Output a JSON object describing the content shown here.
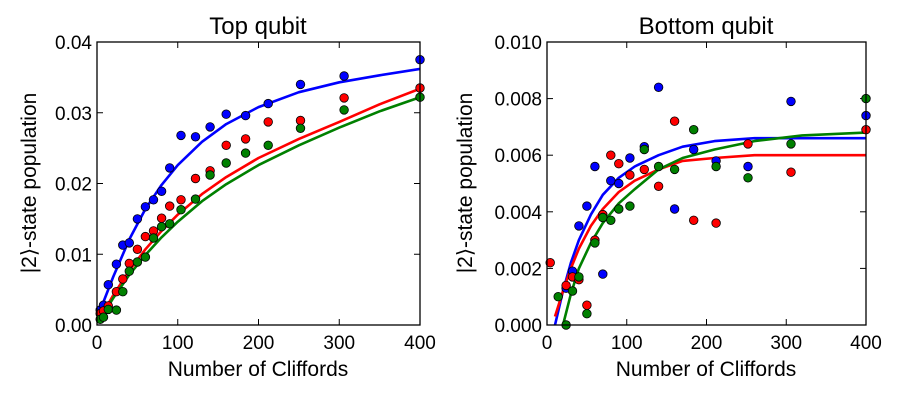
{
  "chart_data": [
    {
      "type": "scatter",
      "title": "Top qubit",
      "xlabel": "Number of Cliffords",
      "ylabel": "|2⟩-state population",
      "xlim": [
        0,
        400
      ],
      "ylim": [
        0,
        0.04
      ],
      "xticks": [
        "0",
        "100",
        "200",
        "300",
        "400"
      ],
      "yticks": [
        "0.00",
        "0.01",
        "0.02",
        "0.03",
        "0.04"
      ],
      "grid": false,
      "series": [
        {
          "color": "#0000ff",
          "points": [
            [
              4,
              0.0021
            ],
            [
              8,
              0.0028
            ],
            [
              14,
              0.0057
            ],
            [
              24,
              0.0086
            ],
            [
              32,
              0.0113
            ],
            [
              40,
              0.0116
            ],
            [
              50,
              0.015
            ],
            [
              60,
              0.0167
            ],
            [
              70,
              0.0177
            ],
            [
              80,
              0.0189
            ],
            [
              90,
              0.0222
            ],
            [
              104,
              0.0268
            ],
            [
              122,
              0.0266
            ],
            [
              140,
              0.028
            ],
            [
              160,
              0.0298
            ],
            [
              184,
              0.0296
            ],
            [
              212,
              0.0313
            ],
            [
              252,
              0.034
            ],
            [
              306,
              0.0352
            ],
            [
              400,
              0.0375
            ]
          ],
          "fit": [
            [
              2,
              0.0015
            ],
            [
              20,
              0.0068
            ],
            [
              40,
              0.0121
            ],
            [
              60,
              0.0164
            ],
            [
              80,
              0.0198
            ],
            [
              100,
              0.0226
            ],
            [
              130,
              0.0259
            ],
            [
              160,
              0.0284
            ],
            [
              200,
              0.0308
            ],
            [
              250,
              0.0329
            ],
            [
              300,
              0.0343
            ],
            [
              350,
              0.0353
            ],
            [
              400,
              0.0362
            ]
          ]
        },
        {
          "color": "#ff0000",
          "points": [
            [
              4,
              0.0016
            ],
            [
              8,
              0.002
            ],
            [
              14,
              0.0027
            ],
            [
              24,
              0.0047
            ],
            [
              32,
              0.0065
            ],
            [
              40,
              0.0087
            ],
            [
              50,
              0.0107
            ],
            [
              60,
              0.0125
            ],
            [
              70,
              0.0133
            ],
            [
              80,
              0.0151
            ],
            [
              90,
              0.0168
            ],
            [
              104,
              0.0177
            ],
            [
              122,
              0.0207
            ],
            [
              140,
              0.0218
            ],
            [
              160,
              0.0254
            ],
            [
              184,
              0.0263
            ],
            [
              212,
              0.0287
            ],
            [
              252,
              0.0289
            ],
            [
              306,
              0.0321
            ],
            [
              400,
              0.0335
            ]
          ],
          "fit": [
            [
              2,
              0.0006
            ],
            [
              20,
              0.0042
            ],
            [
              40,
              0.0077
            ],
            [
              60,
              0.0107
            ],
            [
              80,
              0.0133
            ],
            [
              100,
              0.0156
            ],
            [
              130,
              0.0185
            ],
            [
              160,
              0.0209
            ],
            [
              200,
              0.0236
            ],
            [
              250,
              0.0263
            ],
            [
              300,
              0.0287
            ],
            [
              350,
              0.0312
            ],
            [
              400,
              0.0334
            ]
          ]
        },
        {
          "color": "#008000",
          "points": [
            [
              4,
              0.0008
            ],
            [
              8,
              0.0011
            ],
            [
              14,
              0.0022
            ],
            [
              24,
              0.0021
            ],
            [
              32,
              0.0047
            ],
            [
              40,
              0.0076
            ],
            [
              50,
              0.0089
            ],
            [
              60,
              0.0096
            ],
            [
              70,
              0.0123
            ],
            [
              80,
              0.0139
            ],
            [
              90,
              0.0143
            ],
            [
              104,
              0.0163
            ],
            [
              122,
              0.0178
            ],
            [
              140,
              0.0212
            ],
            [
              160,
              0.0229
            ],
            [
              184,
              0.0243
            ],
            [
              212,
              0.0254
            ],
            [
              252,
              0.0278
            ],
            [
              306,
              0.0304
            ],
            [
              400,
              0.0322
            ]
          ],
          "fit": [
            [
              2,
              0.0004
            ],
            [
              20,
              0.0038
            ],
            [
              40,
              0.0071
            ],
            [
              60,
              0.0099
            ],
            [
              80,
              0.0124
            ],
            [
              100,
              0.0146
            ],
            [
              130,
              0.0175
            ],
            [
              160,
              0.0199
            ],
            [
              200,
              0.0226
            ],
            [
              250,
              0.0254
            ],
            [
              300,
              0.0279
            ],
            [
              350,
              0.0302
            ],
            [
              400,
              0.0322
            ]
          ]
        }
      ]
    },
    {
      "type": "scatter",
      "title": "Bottom qubit",
      "xlabel": "Number of Cliffords",
      "ylabel": "|2⟩-state population",
      "xlim": [
        0,
        400
      ],
      "ylim": [
        0,
        0.01
      ],
      "xticks": [
        "0",
        "100",
        "200",
        "300",
        "400"
      ],
      "yticks": [
        "0.000",
        "0.002",
        "0.004",
        "0.006",
        "0.008",
        "0.010"
      ],
      "grid": false,
      "series": [
        {
          "color": "#0000ff",
          "points": [
            [
              24,
              0.0013
            ],
            [
              32,
              0.0019
            ],
            [
              40,
              0.0035
            ],
            [
              50,
              0.0042
            ],
            [
              60,
              0.0056
            ],
            [
              70,
              0.0018
            ],
            [
              80,
              0.0051
            ],
            [
              90,
              0.005
            ],
            [
              104,
              0.0059
            ],
            [
              122,
              0.0063
            ],
            [
              140,
              0.0084
            ],
            [
              160,
              0.0041
            ],
            [
              184,
              0.0062
            ],
            [
              212,
              0.0058
            ],
            [
              252,
              0.0056
            ],
            [
              306,
              0.0079
            ],
            [
              400,
              0.0074
            ]
          ],
          "fit": [
            [
              10,
              0.0
            ],
            [
              20,
              0.0012
            ],
            [
              30,
              0.0022
            ],
            [
              40,
              0.003
            ],
            [
              55,
              0.0039
            ],
            [
              70,
              0.0046
            ],
            [
              90,
              0.0052
            ],
            [
              110,
              0.0056
            ],
            [
              140,
              0.006
            ],
            [
              170,
              0.0063
            ],
            [
              210,
              0.0065
            ],
            [
              260,
              0.0066
            ],
            [
              320,
              0.0066
            ],
            [
              400,
              0.0066
            ]
          ]
        },
        {
          "color": "#ff0000",
          "points": [
            [
              4,
              0.0022
            ],
            [
              24,
              0.0014
            ],
            [
              32,
              0.0017
            ],
            [
              40,
              0.0016
            ],
            [
              50,
              0.0007
            ],
            [
              60,
              0.003
            ],
            [
              70,
              0.0039
            ],
            [
              80,
              0.006
            ],
            [
              90,
              0.0057
            ],
            [
              104,
              0.0053
            ],
            [
              122,
              0.0055
            ],
            [
              140,
              0.0049
            ],
            [
              160,
              0.0072
            ],
            [
              184,
              0.0037
            ],
            [
              212,
              0.0036
            ],
            [
              252,
              0.0064
            ],
            [
              306,
              0.0054
            ],
            [
              400,
              0.0069
            ]
          ],
          "fit": [
            [
              10,
              0.0003
            ],
            [
              20,
              0.0012
            ],
            [
              30,
              0.002
            ],
            [
              40,
              0.0027
            ],
            [
              55,
              0.0035
            ],
            [
              70,
              0.0041
            ],
            [
              90,
              0.0047
            ],
            [
              110,
              0.0051
            ],
            [
              140,
              0.0055
            ],
            [
              170,
              0.0058
            ],
            [
              210,
              0.0059
            ],
            [
              260,
              0.006
            ],
            [
              320,
              0.006
            ],
            [
              400,
              0.006
            ]
          ]
        },
        {
          "color": "#008000",
          "points": [
            [
              14,
              0.001
            ],
            [
              24,
              0.0
            ],
            [
              32,
              0.0012
            ],
            [
              40,
              0.0017
            ],
            [
              50,
              0.0004
            ],
            [
              60,
              0.0029
            ],
            [
              70,
              0.0038
            ],
            [
              80,
              0.0037
            ],
            [
              90,
              0.0041
            ],
            [
              104,
              0.0042
            ],
            [
              122,
              0.0062
            ],
            [
              140,
              0.0056
            ],
            [
              160,
              0.0055
            ],
            [
              184,
              0.0069
            ],
            [
              212,
              0.0056
            ],
            [
              252,
              0.0052
            ],
            [
              306,
              0.0064
            ],
            [
              400,
              0.008
            ]
          ],
          "fit": [
            [
              20,
              0.0
            ],
            [
              30,
              0.0011
            ],
            [
              40,
              0.002
            ],
            [
              55,
              0.0029
            ],
            [
              70,
              0.0036
            ],
            [
              90,
              0.0043
            ],
            [
              110,
              0.0048
            ],
            [
              140,
              0.0055
            ],
            [
              170,
              0.0059
            ],
            [
              210,
              0.0062
            ],
            [
              260,
              0.0065
            ],
            [
              320,
              0.0067
            ],
            [
              400,
              0.0068
            ]
          ]
        }
      ]
    }
  ]
}
